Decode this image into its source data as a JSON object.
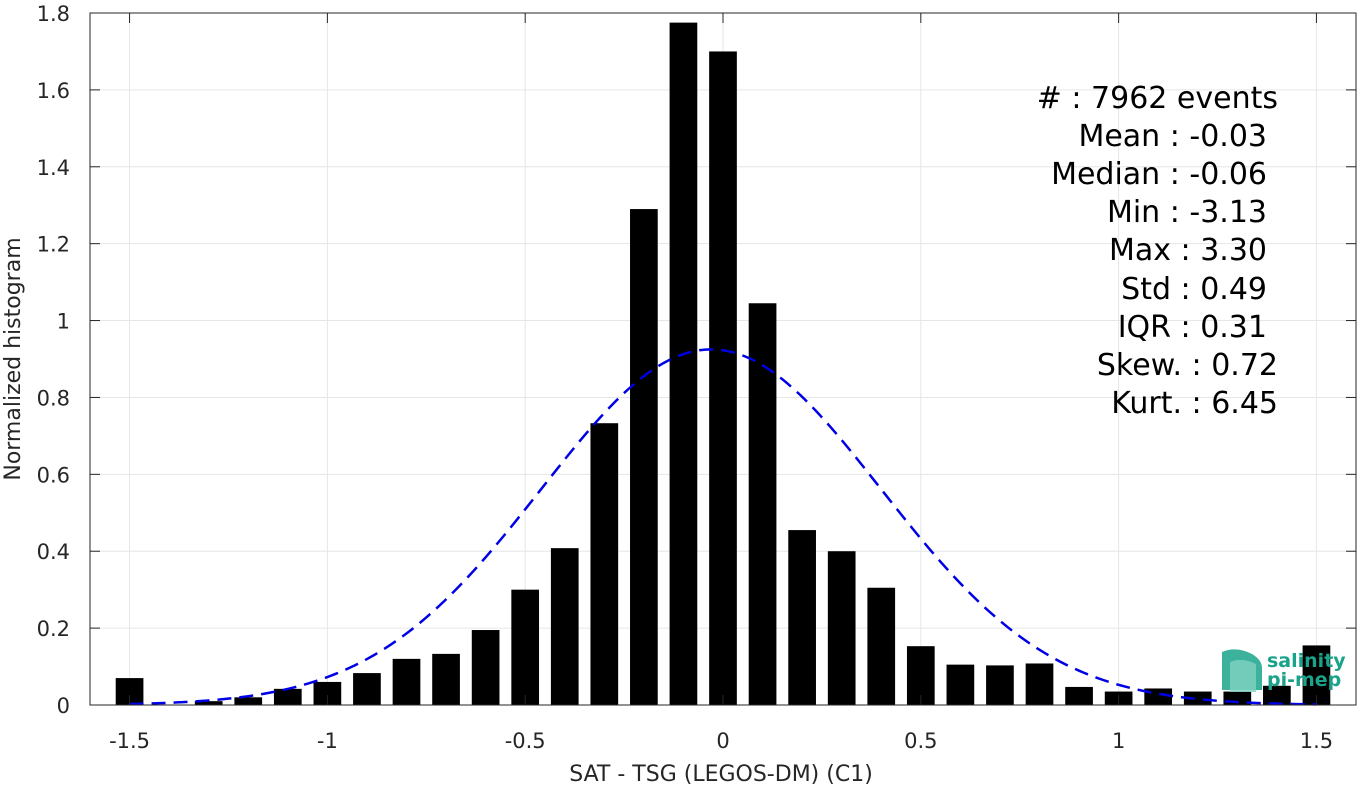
{
  "chart_data": {
    "type": "bar",
    "xlabel": "SAT - TSG (LEGOS-DM) (C1)",
    "ylabel": "Normalized histogram",
    "xlim": [
      -1.6,
      1.6
    ],
    "ylim": [
      0,
      1.8
    ],
    "xticks": [
      -1.5,
      -1,
      -0.5,
      0,
      0.5,
      1,
      1.5
    ],
    "xtick_labels": [
      "-1.5",
      "-1",
      "-0.5",
      "0",
      "0.5",
      "1",
      "1.5"
    ],
    "yticks": [
      0,
      0.2,
      0.4,
      0.6,
      0.8,
      1,
      1.2,
      1.4,
      1.6,
      1.8
    ],
    "ytick_labels": [
      "0",
      "0.2",
      "0.4",
      "0.6",
      "0.8",
      "1",
      "1.2",
      "1.4",
      "1.6",
      "1.8"
    ],
    "grid": true,
    "bar_width": 0.07,
    "bar_color": "#000000",
    "bins": [
      {
        "x": -1.5,
        "y": 0.07
      },
      {
        "x": -1.4,
        "y": 0.0
      },
      {
        "x": -1.3,
        "y": 0.01
      },
      {
        "x": -1.2,
        "y": 0.02
      },
      {
        "x": -1.1,
        "y": 0.042
      },
      {
        "x": -1.0,
        "y": 0.06
      },
      {
        "x": -0.9,
        "y": 0.083
      },
      {
        "x": -0.8,
        "y": 0.12
      },
      {
        "x": -0.7,
        "y": 0.133
      },
      {
        "x": -0.6,
        "y": 0.195
      },
      {
        "x": -0.5,
        "y": 0.3
      },
      {
        "x": -0.4,
        "y": 0.408
      },
      {
        "x": -0.3,
        "y": 0.733
      },
      {
        "x": -0.2,
        "y": 1.29
      },
      {
        "x": -0.1,
        "y": 1.775
      },
      {
        "x": 0.0,
        "y": 1.7
      },
      {
        "x": 0.1,
        "y": 1.045
      },
      {
        "x": 0.2,
        "y": 0.455
      },
      {
        "x": 0.3,
        "y": 0.4
      },
      {
        "x": 0.4,
        "y": 0.305
      },
      {
        "x": 0.5,
        "y": 0.153
      },
      {
        "x": 0.6,
        "y": 0.105
      },
      {
        "x": 0.7,
        "y": 0.103
      },
      {
        "x": 0.8,
        "y": 0.108
      },
      {
        "x": 0.9,
        "y": 0.047
      },
      {
        "x": 1.0,
        "y": 0.035
      },
      {
        "x": 1.1,
        "y": 0.043
      },
      {
        "x": 1.2,
        "y": 0.035
      },
      {
        "x": 1.3,
        "y": 0.035
      },
      {
        "x": 1.4,
        "y": 0.05
      },
      {
        "x": 1.5,
        "y": 0.155
      }
    ],
    "fit_curve": {
      "style": "dashed",
      "color": "#0000e6",
      "mean": -0.03,
      "std": 0.43,
      "peak": 0.925,
      "x_range": [
        -1.5,
        1.5
      ]
    }
  },
  "stats": {
    "lines": [
      "#  : 7962 events",
      "Mean : -0.03",
      "Median : -0.06",
      "Min : -3.13",
      "Max : 3.30",
      "Std : 0.49",
      "IQR : 0.31",
      "Skew. : 0.72",
      "Kurt. : 6.45"
    ]
  },
  "logo": {
    "line1": "salinity",
    "line2": "pi-mep",
    "color": "#1aa38a"
  }
}
